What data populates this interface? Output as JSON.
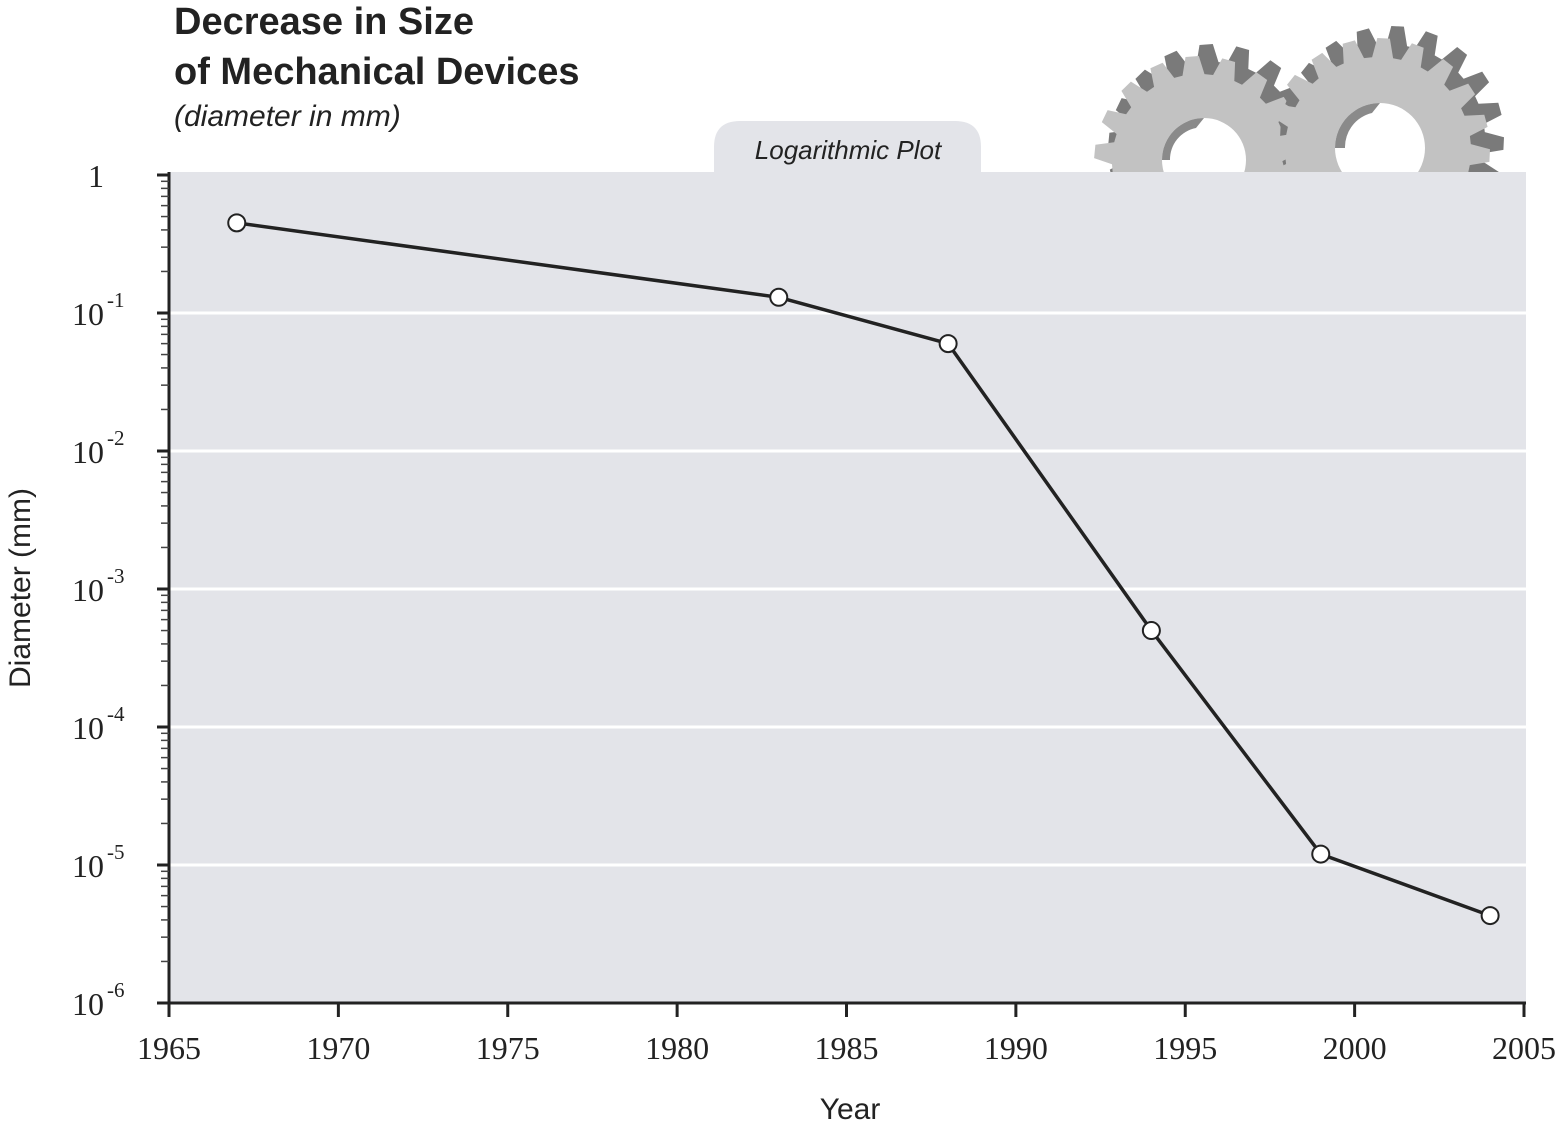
{
  "chart_data": {
    "type": "line",
    "title": "Decrease in Size",
    "title_line2": "of Mechanical Devices",
    "subtitle": "(diameter in mm)",
    "annotation": "Logarithmic Plot",
    "xlabel": "Year",
    "ylabel": "Diameter (mm)",
    "yscale": "log",
    "xlim": [
      1965,
      2005
    ],
    "ylim": [
      1e-06,
      1
    ],
    "x_ticks": [
      "1965",
      "1970",
      "1975",
      "1980",
      "1985",
      "1990",
      "1995",
      "2000",
      "2005"
    ],
    "y_ticks": [
      {
        "base": "1",
        "exp": ""
      },
      {
        "base": "10",
        "exp": "-1"
      },
      {
        "base": "10",
        "exp": "-2"
      },
      {
        "base": "10",
        "exp": "-3"
      },
      {
        "base": "10",
        "exp": "-4"
      },
      {
        "base": "10",
        "exp": "-5"
      },
      {
        "base": "10",
        "exp": "-6"
      }
    ],
    "grid": "horizontal",
    "series": [
      {
        "x": [
          1967,
          1983,
          1988,
          1994,
          1999,
          2004
        ],
        "y": [
          0.45,
          0.13,
          0.06,
          0.0005,
          1.2e-05,
          4.3e-06
        ]
      }
    ],
    "colors": {
      "plot_background": "#e3e4e9",
      "line": "#222222",
      "marker_fill": "#ffffff",
      "gear_light": "#c2c2c2",
      "gear_dark": "#7a7a7a"
    }
  }
}
